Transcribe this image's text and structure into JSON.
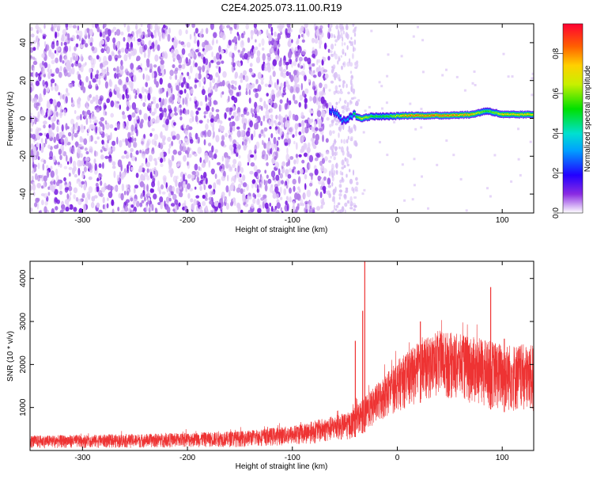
{
  "title": "C2E4.2025.073.11.00.R19",
  "colors": {
    "snr_line": "#ee3333",
    "spectrogram_noise": "#7a1fe0",
    "frame": "#000000"
  },
  "chart_data": [
    {
      "type": "heatmap",
      "xlabel": "Height of straight line (km)",
      "ylabel": "Frequency (Hz)",
      "xlim": [
        -350,
        130
      ],
      "ylim": [
        -50,
        50
      ],
      "xticks": [
        -300,
        -200,
        -100,
        0,
        100
      ],
      "yticks": [
        -40,
        -20,
        0,
        20,
        40
      ],
      "colorbar": {
        "label": "Normalized spectral amplitude",
        "range": [
          0.0,
          0.95
        ],
        "ticks": [
          0.0,
          0.2,
          0.4,
          0.6,
          0.8
        ],
        "colormap": "rainbow"
      },
      "noise_region_x": [
        -350,
        -65
      ],
      "sparse_noise_x": [
        -65,
        -38
      ],
      "signal_track": [
        {
          "x": -65,
          "freq": 5,
          "amplitude": 0.3
        },
        {
          "x": -58,
          "freq": 3,
          "amplitude": 0.4
        },
        {
          "x": -52,
          "freq": -2,
          "amplitude": 0.35
        },
        {
          "x": -45,
          "freq": 2,
          "amplitude": 0.4
        },
        {
          "x": -35,
          "freq": 0,
          "amplitude": 0.8
        },
        {
          "x": -25,
          "freq": 1,
          "amplitude": 0.6
        },
        {
          "x": -10,
          "freq": 1,
          "amplitude": 0.6
        },
        {
          "x": 10,
          "freq": 1.5,
          "amplitude": 0.9
        },
        {
          "x": 40,
          "freq": 1.5,
          "amplitude": 0.95
        },
        {
          "x": 70,
          "freq": 2,
          "amplitude": 0.85
        },
        {
          "x": 85,
          "freq": 4,
          "amplitude": 0.6
        },
        {
          "x": 100,
          "freq": 2,
          "amplitude": 0.8
        },
        {
          "x": 130,
          "freq": 2,
          "amplitude": 0.8
        }
      ]
    },
    {
      "type": "line",
      "xlabel": "Height of straight line (km)",
      "ylabel": "SNR (10 * v/v)",
      "xlim": [
        -350,
        130
      ],
      "ylim": [
        0,
        4400
      ],
      "xticks": [
        -300,
        -200,
        -100,
        0,
        100
      ],
      "yticks": [
        1000,
        2000,
        3000,
        4000
      ],
      "envelope": [
        {
          "x": -350,
          "low": 50,
          "high": 350
        },
        {
          "x": -250,
          "low": 60,
          "high": 380
        },
        {
          "x": -150,
          "low": 80,
          "high": 450
        },
        {
          "x": -100,
          "low": 120,
          "high": 580
        },
        {
          "x": -70,
          "low": 180,
          "high": 750
        },
        {
          "x": -45,
          "low": 250,
          "high": 900
        },
        {
          "x": -25,
          "low": 500,
          "high": 1400
        },
        {
          "x": 0,
          "low": 900,
          "high": 2100
        },
        {
          "x": 20,
          "low": 1100,
          "high": 2500
        },
        {
          "x": 40,
          "low": 1200,
          "high": 2800
        },
        {
          "x": 60,
          "low": 1150,
          "high": 2700
        },
        {
          "x": 80,
          "low": 1000,
          "high": 2600
        },
        {
          "x": 100,
          "low": 900,
          "high": 2500
        },
        {
          "x": 130,
          "low": 800,
          "high": 2450
        }
      ],
      "spikes": [
        {
          "x": -40,
          "y": 2550
        },
        {
          "x": -33,
          "y": 3250
        },
        {
          "x": -31,
          "y": 4400
        },
        {
          "x": 22,
          "y": 3000
        },
        {
          "x": 89,
          "y": 3800
        },
        {
          "x": 102,
          "y": 2600
        }
      ]
    }
  ]
}
